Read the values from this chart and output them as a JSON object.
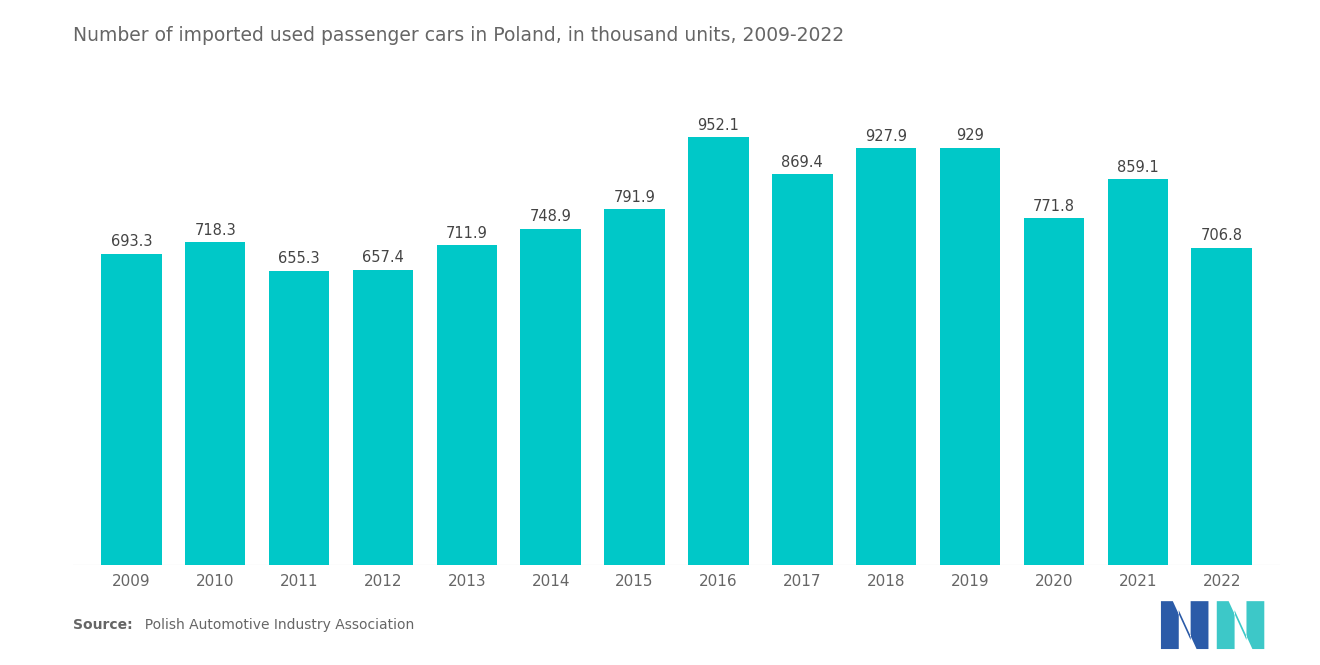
{
  "years": [
    2009,
    2010,
    2011,
    2012,
    2013,
    2014,
    2015,
    2016,
    2017,
    2018,
    2019,
    2020,
    2021,
    2022
  ],
  "values": [
    693.3,
    718.3,
    655.3,
    657.4,
    711.9,
    748.9,
    791.9,
    952.1,
    869.4,
    927.9,
    929.0,
    771.8,
    859.1,
    706.8
  ],
  "bar_color": "#00C8C8",
  "title": "Number of imported used passenger cars in Poland, in thousand units, 2009-2022",
  "title_fontsize": 13.5,
  "label_fontsize": 10.5,
  "source_bold": "Source:",
  "source_normal": "  Polish Automotive Industry Association",
  "background_color": "#FFFFFF",
  "ylim": [
    0,
    1080
  ],
  "value_label_color": "#444444",
  "axis_label_color": "#666666",
  "logo_blue": "#2B5BA8",
  "logo_teal": "#3DC8C8"
}
